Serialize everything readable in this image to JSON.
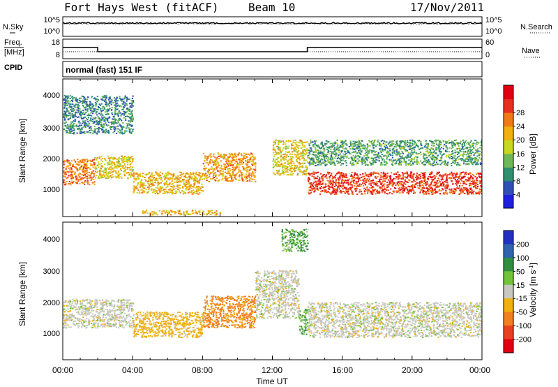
{
  "header": {
    "station": "Fort Hays West (fitACF)",
    "beam": "Beam 10",
    "date": "17/Nov/2011"
  },
  "noise_panel": {
    "left_label": "N.Sky",
    "right_label": "N.Search",
    "left_ticks": [
      "10^5",
      "10^0"
    ],
    "right_ticks": [
      "10^5",
      "10^0"
    ]
  },
  "freq_panel": {
    "left_label_line1": "Freq.",
    "left_label_line2": "[MHz]",
    "right_label": "Nave",
    "left_ticks": [
      "18",
      "8"
    ],
    "right_ticks": [
      "60",
      "0"
    ],
    "freq_color_hex": "#000000"
  },
  "cpid": {
    "label": "CPID",
    "value": "normal (fast) 151 IF"
  },
  "power_panel": {
    "ylabel": "Slant Range [km]",
    "yticks": [
      "1000",
      "2000",
      "3000",
      "4000"
    ],
    "colorbar_label": "Power [dB]",
    "colorbar_ticks": [
      "4",
      "8",
      "12",
      "16",
      "20",
      "24",
      "28"
    ],
    "colorbar_colors": [
      "#1f1fe0",
      "#3050b8",
      "#2f8f6e",
      "#6fb85a",
      "#c8d820",
      "#f0b010",
      "#f07a18",
      "#e83020",
      "#e00010"
    ]
  },
  "velocity_panel": {
    "ylabel": "Slant Range [km]",
    "yticks": [
      "1000",
      "2000",
      "3000",
      "4000"
    ],
    "colorbar_label": "Velocity [m s-1]",
    "colorbar_ticks": [
      "200",
      "100",
      "50",
      "15",
      "-15",
      "-50",
      "-100",
      "-200"
    ],
    "colorbar_colors": [
      "#2030c0",
      "#2f63b0",
      "#2f8f3f",
      "#72c43a",
      "#c8c8c0",
      "#f0b010",
      "#f08020",
      "#e84020",
      "#e00010"
    ]
  },
  "xaxis": {
    "label": "Time UT",
    "ticks": [
      "00:00",
      "04:00",
      "08:00",
      "12:00",
      "16:00",
      "20:00",
      "00:00"
    ]
  },
  "chart_data": {
    "type": "heatmap",
    "x_range_hours": [
      0,
      24
    ],
    "y_range_km": [
      180,
      4500
    ],
    "frequency_mhz": [
      {
        "start_ut_h": 0,
        "end_ut_h": 2,
        "value": 14
      },
      {
        "start_ut_h": 2,
        "end_ut_h": 14,
        "value": 11
      },
      {
        "start_ut_h": 14,
        "end_ut_h": 24,
        "value": 14
      }
    ],
    "power_regions": [
      {
        "t0": 0.0,
        "t1": 1.8,
        "r0": 1200,
        "r1": 2000,
        "db": 24
      },
      {
        "t0": 1.8,
        "t1": 4.0,
        "r0": 1400,
        "r1": 2100,
        "db": 18
      },
      {
        "t0": 4.0,
        "t1": 8.0,
        "r0": 900,
        "r1": 1600,
        "db": 20
      },
      {
        "t0": 8.0,
        "t1": 11.0,
        "r0": 1300,
        "r1": 2200,
        "db": 22
      },
      {
        "t0": 12.0,
        "t1": 14.0,
        "r0": 1500,
        "r1": 2600,
        "db": 18
      },
      {
        "t0": 14.0,
        "t1": 24.0,
        "r0": 900,
        "r1": 1600,
        "db": 28
      },
      {
        "t0": 0.0,
        "t1": 4.0,
        "r0": 2800,
        "r1": 4000,
        "db": 8
      },
      {
        "t0": 14.0,
        "t1": 24.0,
        "r0": 1800,
        "r1": 2600,
        "db": 10
      },
      {
        "t0": 4.5,
        "t1": 9.0,
        "r0": 250,
        "r1": 400,
        "db": 20
      }
    ],
    "velocity_regions": [
      {
        "t0": 0.0,
        "t1": 4.0,
        "r0": 1200,
        "r1": 2100,
        "v": 0
      },
      {
        "t0": 4.0,
        "t1": 8.0,
        "r0": 900,
        "r1": 1700,
        "v": -30
      },
      {
        "t0": 8.0,
        "t1": 11.0,
        "r0": 1200,
        "r1": 2200,
        "v": -60
      },
      {
        "t0": 11.0,
        "t1": 13.5,
        "r0": 1500,
        "r1": 3000,
        "v": 0
      },
      {
        "t0": 13.5,
        "t1": 14.0,
        "r0": 1000,
        "r1": 1800,
        "v": 30
      },
      {
        "t0": 14.0,
        "t1": 24.0,
        "r0": 900,
        "r1": 2000,
        "v": 0
      },
      {
        "t0": 12.5,
        "t1": 14.0,
        "r0": 3600,
        "r1": 4300,
        "v": 30
      }
    ]
  }
}
